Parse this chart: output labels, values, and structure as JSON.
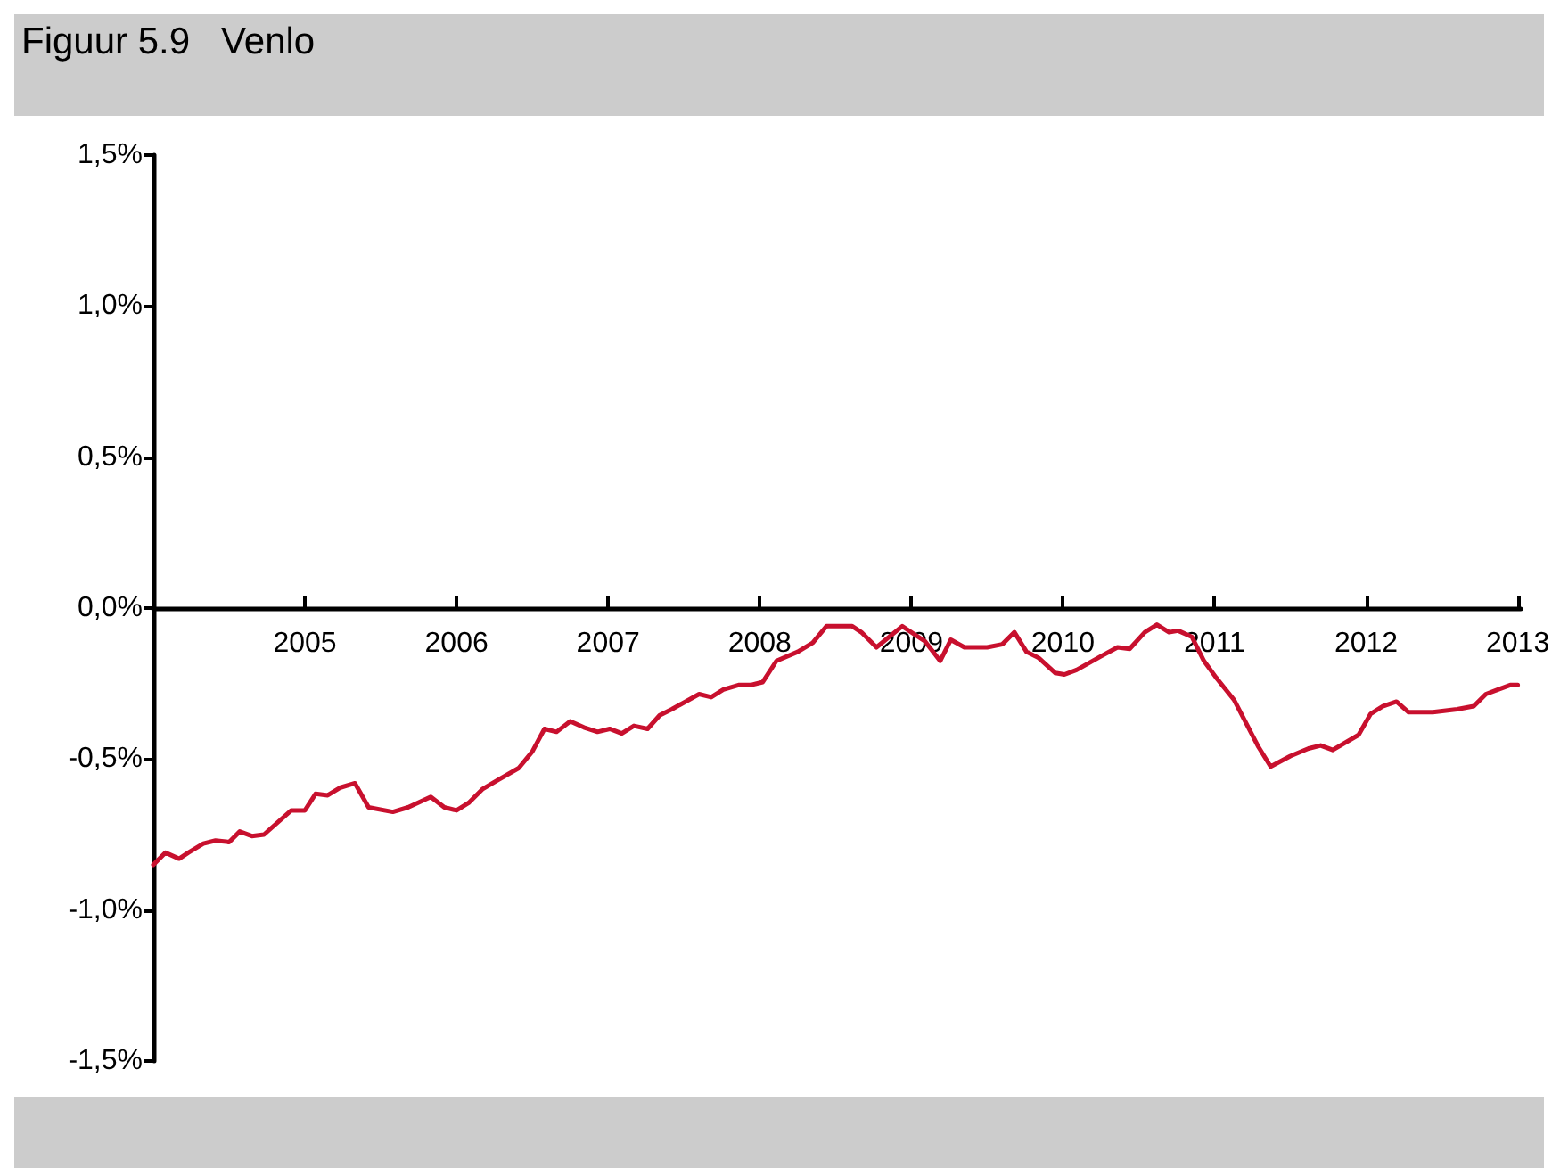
{
  "chart_data": {
    "type": "line",
    "title": "Figuur 5.9   Venlo",
    "x": [
      2004.0,
      2004.08,
      2004.17,
      2004.23,
      2004.33,
      2004.41,
      2004.5,
      2004.57,
      2004.65,
      2004.73,
      2004.91,
      2005.0,
      2005.07,
      2005.15,
      2005.23,
      2005.33,
      2005.42,
      2005.58,
      2005.68,
      2005.83,
      2005.92,
      2006.0,
      2006.08,
      2006.17,
      2006.27,
      2006.41,
      2006.5,
      2006.58,
      2006.66,
      2006.75,
      2006.84,
      2006.93,
      2007.01,
      2007.09,
      2007.17,
      2007.26,
      2007.34,
      2007.42,
      2007.6,
      2007.68,
      2007.76,
      2007.86,
      2007.94,
      2008.02,
      2008.11,
      2008.25,
      2008.35,
      2008.44,
      2008.52,
      2008.61,
      2008.67,
      2008.77,
      2008.94,
      2009.09,
      2009.19,
      2009.26,
      2009.35,
      2009.5,
      2009.6,
      2009.68,
      2009.76,
      2009.84,
      2009.95,
      2010.01,
      2010.09,
      2010.25,
      2010.36,
      2010.44,
      2010.54,
      2010.62,
      2010.7,
      2010.76,
      2010.85,
      2010.93,
      2011.01,
      2011.13,
      2011.29,
      2011.37,
      2011.5,
      2011.62,
      2011.7,
      2011.78,
      2011.95,
      2012.03,
      2012.11,
      2012.2,
      2012.28,
      2012.44,
      2012.6,
      2012.71,
      2012.79,
      2012.87,
      2012.95,
      2013.0
    ],
    "series": [
      {
        "color": "#c8102e",
        "values": [
          -0.85,
          -0.81,
          -0.83,
          -0.81,
          -0.78,
          -0.77,
          -0.775,
          -0.74,
          -0.755,
          -0.75,
          -0.67,
          -0.67,
          -0.615,
          -0.62,
          -0.595,
          -0.58,
          -0.66,
          -0.675,
          -0.66,
          -0.625,
          -0.66,
          -0.67,
          -0.645,
          -0.6,
          -0.57,
          -0.53,
          -0.475,
          -0.4,
          -0.41,
          -0.375,
          -0.395,
          -0.41,
          -0.4,
          -0.415,
          -0.39,
          -0.4,
          -0.355,
          -0.335,
          -0.285,
          -0.295,
          -0.27,
          -0.255,
          -0.255,
          -0.245,
          -0.175,
          -0.145,
          -0.115,
          -0.06,
          -0.06,
          -0.06,
          -0.08,
          -0.13,
          -0.06,
          -0.11,
          -0.175,
          -0.105,
          -0.13,
          -0.13,
          -0.12,
          -0.08,
          -0.145,
          -0.165,
          -0.215,
          -0.22,
          -0.205,
          -0.16,
          -0.13,
          -0.135,
          -0.08,
          -0.055,
          -0.08,
          -0.075,
          -0.095,
          -0.175,
          -0.23,
          -0.305,
          -0.46,
          -0.525,
          -0.49,
          -0.465,
          -0.455,
          -0.47,
          -0.42,
          -0.35,
          -0.325,
          -0.31,
          -0.345,
          -0.345,
          -0.335,
          -0.325,
          -0.285,
          -0.27,
          -0.255,
          -0.255
        ]
      }
    ],
    "xlim": [
      2004,
      2013.02
    ],
    "xticks": [
      2005,
      2006,
      2007,
      2008,
      2009,
      2010,
      2011,
      2012,
      2013
    ],
    "ylim": [
      -1.5,
      1.5
    ],
    "yticks": [
      {
        "value": -1.5,
        "label": "-1,5%"
      },
      {
        "value": -1.0,
        "label": "-1,0%"
      },
      {
        "value": -0.5,
        "label": "-0,5%"
      },
      {
        "value": 0,
        "label": "0,0%"
      },
      {
        "value": 0.5,
        "label": "0,5%"
      },
      {
        "value": 1.0,
        "label": "1,0%"
      },
      {
        "value": 1.5,
        "label": "1,5%"
      }
    ],
    "marker": "none",
    "line_style": "solid"
  }
}
